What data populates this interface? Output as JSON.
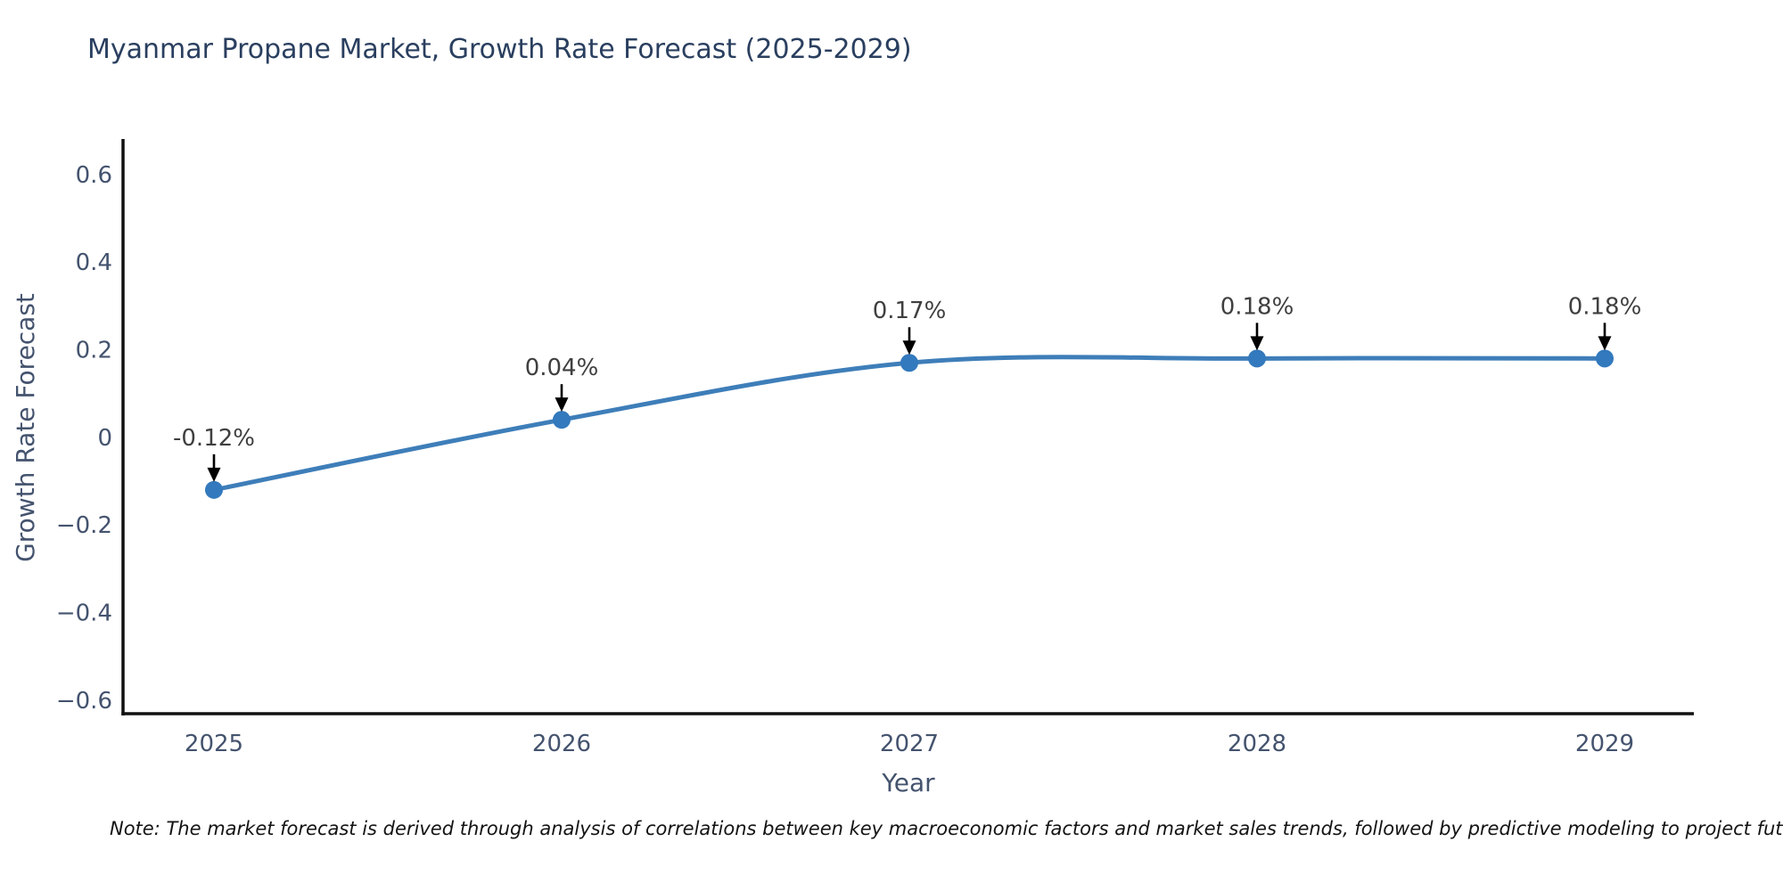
{
  "header": {
    "title": "Myanmar Propane Market, Growth Rate Forecast (2025-2029)"
  },
  "chart_data": {
    "type": "line",
    "title": "Myanmar Propane Market, Growth Rate Forecast (2025-2029)",
    "xlabel": "Year",
    "ylabel": "Growth Rate Forecast",
    "categories": [
      "2025",
      "2026",
      "2027",
      "2028",
      "2029"
    ],
    "series": [
      {
        "name": "Growth Rate Forecast",
        "values": [
          -0.12,
          0.04,
          0.17,
          0.18,
          0.18
        ]
      }
    ],
    "point_labels": [
      "-0.12%",
      "0.04%",
      "0.17%",
      "0.18%",
      "0.18%"
    ],
    "yticks": {
      "values": [
        0.6,
        0.4,
        0.2,
        0,
        -0.2,
        -0.4,
        -0.6
      ],
      "labels": [
        "0.6",
        "0.4",
        "0.2",
        "0",
        "−0.2",
        "−0.4",
        "−0.6"
      ]
    },
    "ylim": [
      -0.635,
      0.677
    ],
    "grid": false,
    "legend_position": "none",
    "line_shape": "spline",
    "colors": {
      "line": "#3e7eb9",
      "marker": "#3379bd",
      "axis": "#111111",
      "tick_text": "#44536e",
      "title_text": "#2a3f5f",
      "annotation_text": "#3f3f3f",
      "annotation_arrow": "#000000",
      "background": "#ffffff"
    }
  },
  "footer": {
    "note": "Note: The market forecast is derived through analysis of correlations between key macroeconomic factors and market sales trends, followed by predictive modeling to project future sales."
  }
}
